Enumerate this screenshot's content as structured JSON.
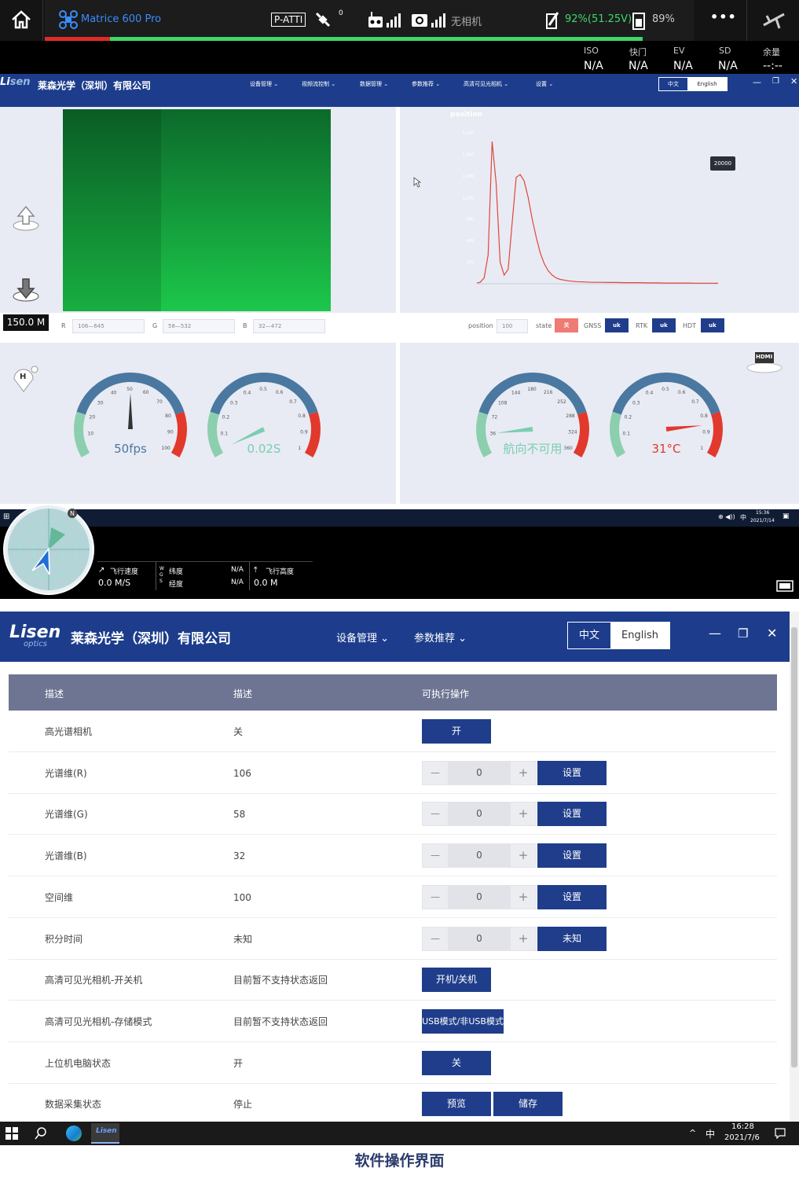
{
  "dji": {
    "aircraft": "Matrice 600 Pro",
    "mode": "P-ATTI",
    "gps_count": "0",
    "camera_label": "无相机",
    "battery": "92%(51.25V)",
    "battery2": "89%",
    "more": "•••",
    "exposure": {
      "labels": [
        "ISO",
        "快门",
        "EV",
        "SD",
        "余量"
      ],
      "values": [
        "N/A",
        "N/A",
        "N/A",
        "N/A",
        "--:--"
      ]
    }
  },
  "app_small": {
    "company": "莱森光学（深圳）有限公司",
    "nav": [
      "设备管理 ⌄",
      "视频流控制 ⌄",
      "数据管理 ⌄",
      "参数推荐 ⌄",
      "高清可见光相机 ⌄",
      "设置 ⌄"
    ],
    "lang_cn": "中文",
    "lang_en": "English",
    "chart_title": "position",
    "tooltip": "20000",
    "altitude_badge": "150.0 M",
    "rgb": {
      "r_label": "R",
      "r_value": "106—645",
      "g_label": "G",
      "g_value": "58—532",
      "b_label": "B",
      "b_value": "32—472"
    },
    "status": {
      "position_label": "position",
      "position_value": "100",
      "state_label": "state",
      "state_value": "关",
      "gnss_label": "GNSS",
      "gnss_value": "uk",
      "rtk_label": "RTK",
      "rtk_value": "uk",
      "hdt_label": "HDT",
      "hdt_value": "uk"
    },
    "gauges": [
      {
        "label": "50fps",
        "ticks": [
          "10",
          "20",
          "30",
          "40",
          "50",
          "60",
          "70",
          "80",
          "90",
          "100"
        ],
        "needle": 0.5,
        "color": "#333"
      },
      {
        "label": "0.02S",
        "ticks": [
          "0.1",
          "0.2",
          "0.3",
          "0.4",
          "0.5",
          "0.6",
          "0.7",
          "0.8",
          "0.9",
          "1"
        ],
        "needle": 0.02,
        "color": "#7ccdb0"
      },
      {
        "label": "航向不可用",
        "ticks": [
          "36",
          "72",
          "108",
          "144",
          "180",
          "216",
          "252",
          "288",
          "324",
          "360"
        ],
        "needle": 0.1,
        "color": "#7ccdb0"
      },
      {
        "label": "31°C",
        "ticks": [
          "0.1",
          "0.2",
          "0.3",
          "0.4",
          "0.5",
          "0.6",
          "0.7",
          "0.8",
          "0.9",
          "1"
        ],
        "needle": 0.85,
        "color": "#e2392d"
      }
    ],
    "hdmi": "HDMI",
    "home_label": "H",
    "win_time": "15:36",
    "win_date": "2021/7/14",
    "win_ime": "中"
  },
  "chart_data": {
    "type": "line",
    "title": "position",
    "x": [
      392,
      400,
      410,
      420,
      430,
      440,
      450,
      460,
      470,
      480,
      490,
      500,
      510,
      520,
      530,
      540,
      550,
      560,
      570,
      580,
      590,
      600,
      620,
      640,
      660,
      680,
      700,
      720,
      740,
      760,
      780,
      800,
      820,
      840,
      860,
      880,
      900,
      920,
      940,
      960,
      980,
      994
    ],
    "values": [
      10,
      20,
      80,
      400,
      1980,
      1400,
      300,
      120,
      200,
      850,
      1480,
      1520,
      1430,
      1200,
      900,
      650,
      430,
      280,
      180,
      120,
      80,
      60,
      40,
      30,
      25,
      20,
      20,
      18,
      18,
      15,
      15,
      15,
      12,
      12,
      10,
      10,
      10,
      10,
      8,
      8,
      8,
      8
    ],
    "ylim": [
      0,
      2100
    ]
  },
  "flight": {
    "speed_label": "飞行速度",
    "speed": "0.0 M/S",
    "lat_label": "纬度",
    "lat": "N/A",
    "lon_label": "经度",
    "lon": "N/A",
    "wgs": "W G S",
    "alt_label": "飞行高度",
    "alt": "0.0 M",
    "north": "N"
  },
  "app_large": {
    "logo": "Lisen",
    "logo_sub": "optics",
    "company": "莱森光学（深圳）有限公司",
    "nav": [
      "设备管理 ⌄",
      "参数推荐 ⌄"
    ],
    "lang_cn": "中文",
    "lang_en": "English",
    "headers": [
      "描述",
      "描述",
      "可执行操作"
    ],
    "rows": [
      {
        "name": "高光谱相机",
        "desc": "关",
        "type": "btn",
        "buttons": [
          "开"
        ]
      },
      {
        "name": "光谱维(R)",
        "desc": "106",
        "type": "stepper",
        "value": "0",
        "buttons": [
          "设置"
        ]
      },
      {
        "name": "光谱维(G)",
        "desc": "58",
        "type": "stepper",
        "value": "0",
        "buttons": [
          "设置"
        ]
      },
      {
        "name": "光谱维(B)",
        "desc": "32",
        "type": "stepper",
        "value": "0",
        "buttons": [
          "设置"
        ]
      },
      {
        "name": "空间维",
        "desc": "100",
        "type": "stepper",
        "value": "0",
        "buttons": [
          "设置"
        ]
      },
      {
        "name": "积分时间",
        "desc": "未知",
        "type": "stepper",
        "value": "0",
        "buttons": [
          "未知"
        ]
      },
      {
        "name": "高清可见光相机-开关机",
        "desc": "目前暂不支持状态返回",
        "type": "btn",
        "buttons": [
          "开机/关机"
        ]
      },
      {
        "name": "高清可见光相机-存储模式",
        "desc": "目前暂不支持状态返回",
        "type": "btn",
        "buttons": [
          "USB模式/非USB模式"
        ]
      },
      {
        "name": "上位机电脑状态",
        "desc": "开",
        "type": "btn",
        "buttons": [
          "关"
        ]
      },
      {
        "name": "数据采集状态",
        "desc": "停止",
        "type": "btn",
        "buttons": [
          "预览",
          "储存"
        ]
      }
    ],
    "stepper_minus": "—",
    "stepper_plus": "+"
  },
  "taskbar": {
    "time": "16:28",
    "date": "2021/7/6",
    "ime": "中"
  },
  "caption": "软件操作界面"
}
